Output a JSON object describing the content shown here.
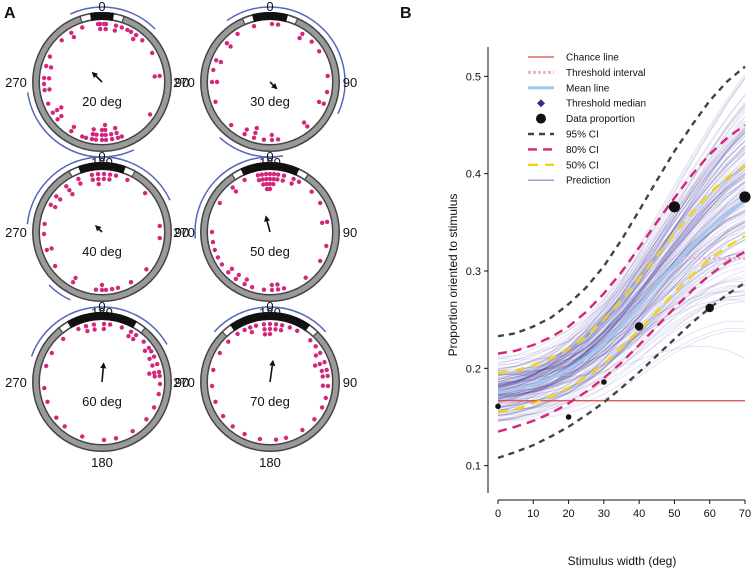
{
  "panels": {
    "a_label": "A",
    "b_label": "B"
  },
  "circular_panels": {
    "direction_labels": {
      "top": "0",
      "right": "90",
      "bottom": "180",
      "left": "270"
    },
    "dials": [
      {
        "label": "20 deg",
        "stimulus_width_deg": 20,
        "arrow_deg": 315,
        "arrow_len": 0.22,
        "arc_ranges": [
          [
            -25,
            45
          ],
          [
            155,
            262
          ]
        ],
        "dots": [
          [
            356,
            1
          ],
          [
            358,
            2
          ],
          [
            2,
            1
          ],
          [
            4,
            2
          ],
          [
            14,
            2
          ],
          [
            20,
            1
          ],
          [
            26,
            1
          ],
          [
            30,
            1
          ],
          [
            36,
            2
          ],
          [
            44,
            1
          ],
          [
            60,
            1
          ],
          [
            84,
            2
          ],
          [
            124,
            1
          ],
          [
            160,
            1
          ],
          [
            164,
            3
          ],
          [
            170,
            2
          ],
          [
            176,
            4
          ],
          [
            180,
            3
          ],
          [
            186,
            2
          ],
          [
            190,
            3
          ],
          [
            196,
            1
          ],
          [
            200,
            1
          ],
          [
            212,
            2
          ],
          [
            230,
            2
          ],
          [
            238,
            3
          ],
          [
            248,
            1
          ],
          [
            262,
            2
          ],
          [
            268,
            1
          ],
          [
            274,
            2
          ],
          [
            286,
            2
          ],
          [
            296,
            1
          ],
          [
            316,
            1
          ],
          [
            328,
            2
          ],
          [
            340,
            1
          ]
        ]
      },
      {
        "label": "30 deg",
        "stimulus_width_deg": 30,
        "arrow_deg": 135,
        "arrow_len": 0.16,
        "arc_ranges": [
          [
            -35,
            115
          ],
          [
            170,
            222
          ]
        ],
        "dots": [
          [
            2,
            1
          ],
          [
            8,
            1
          ],
          [
            34,
            2
          ],
          [
            46,
            1
          ],
          [
            58,
            1
          ],
          [
            84,
            1
          ],
          [
            100,
            1
          ],
          [
            112,
            2
          ],
          [
            140,
            2
          ],
          [
            172,
            1
          ],
          [
            178,
            2
          ],
          [
            186,
            1
          ],
          [
            196,
            3
          ],
          [
            206,
            2
          ],
          [
            222,
            1
          ],
          [
            250,
            1
          ],
          [
            270,
            2
          ],
          [
            282,
            1
          ],
          [
            292,
            2
          ],
          [
            312,
            2
          ],
          [
            326,
            1
          ],
          [
            344,
            1
          ]
        ]
      },
      {
        "label": "40 deg",
        "stimulus_width_deg": 40,
        "arrow_deg": 315,
        "arrow_len": 0.15,
        "arc_ranges": [
          [
            -84,
            65
          ],
          [
            205,
            225
          ]
        ],
        "dots": [
          [
            350,
            2
          ],
          [
            356,
            3
          ],
          [
            2,
            2
          ],
          [
            8,
            2
          ],
          [
            14,
            1
          ],
          [
            26,
            1
          ],
          [
            48,
            1
          ],
          [
            84,
            1
          ],
          [
            96,
            1
          ],
          [
            130,
            1
          ],
          [
            150,
            1
          ],
          [
            164,
            1
          ],
          [
            170,
            1
          ],
          [
            176,
            1
          ],
          [
            180,
            2
          ],
          [
            186,
            1
          ],
          [
            210,
            2
          ],
          [
            234,
            1
          ],
          [
            252,
            2
          ],
          [
            268,
            1
          ],
          [
            278,
            1
          ],
          [
            298,
            2
          ],
          [
            308,
            2
          ],
          [
            322,
            3
          ],
          [
            336,
            2
          ]
        ]
      },
      {
        "label": "50 deg",
        "stimulus_width_deg": 50,
        "arrow_deg": 345,
        "arrow_len": 0.26,
        "arc_ranges": [
          [
            -95,
            5
          ]
        ],
        "dots": [
          [
            348,
            2
          ],
          [
            352,
            3
          ],
          [
            356,
            4
          ],
          [
            0,
            4
          ],
          [
            4,
            3
          ],
          [
            8,
            2
          ],
          [
            14,
            2
          ],
          [
            24,
            2
          ],
          [
            30,
            1
          ],
          [
            46,
            1
          ],
          [
            60,
            1
          ],
          [
            80,
            2
          ],
          [
            104,
            1
          ],
          [
            120,
            1
          ],
          [
            142,
            1
          ],
          [
            166,
            1
          ],
          [
            172,
            2
          ],
          [
            178,
            2
          ],
          [
            186,
            1
          ],
          [
            198,
            1
          ],
          [
            206,
            2
          ],
          [
            216,
            2
          ],
          [
            226,
            2
          ],
          [
            236,
            1
          ],
          [
            244,
            1
          ],
          [
            252,
            1
          ],
          [
            260,
            1
          ],
          [
            270,
            1
          ],
          [
            300,
            1
          ],
          [
            320,
            2
          ],
          [
            334,
            1
          ]
        ]
      },
      {
        "label": "60 deg",
        "stimulus_width_deg": 60,
        "arrow_deg": 5,
        "arrow_len": 0.3,
        "arc_ranges": [
          [
            -70,
            60
          ]
        ],
        "dots": [
          [
            336,
            1
          ],
          [
            344,
            2
          ],
          [
            352,
            2
          ],
          [
            2,
            2
          ],
          [
            8,
            1
          ],
          [
            20,
            1
          ],
          [
            30,
            2
          ],
          [
            36,
            2
          ],
          [
            46,
            1
          ],
          [
            54,
            2
          ],
          [
            58,
            1
          ],
          [
            64,
            2
          ],
          [
            72,
            2
          ],
          [
            80,
            3
          ],
          [
            84,
            2
          ],
          [
            92,
            1
          ],
          [
            102,
            1
          ],
          [
            116,
            1
          ],
          [
            130,
            1
          ],
          [
            148,
            1
          ],
          [
            166,
            1
          ],
          [
            178,
            1
          ],
          [
            200,
            1
          ],
          [
            220,
            1
          ],
          [
            232,
            1
          ],
          [
            250,
            1
          ],
          [
            264,
            1
          ],
          [
            286,
            1
          ],
          [
            300,
            1
          ],
          [
            318,
            1
          ]
        ]
      },
      {
        "label": "70 deg",
        "stimulus_width_deg": 70,
        "arrow_deg": 8,
        "arrow_len": 0.34,
        "arc_ranges": [
          [
            -48,
            48
          ]
        ],
        "dots": [
          [
            334,
            1
          ],
          [
            340,
            2
          ],
          [
            346,
            1
          ],
          [
            354,
            3
          ],
          [
            0,
            3
          ],
          [
            6,
            2
          ],
          [
            12,
            2
          ],
          [
            20,
            1
          ],
          [
            28,
            1
          ],
          [
            44,
            1
          ],
          [
            52,
            1
          ],
          [
            60,
            2
          ],
          [
            70,
            3
          ],
          [
            78,
            2
          ],
          [
            84,
            2
          ],
          [
            94,
            2
          ],
          [
            106,
            1
          ],
          [
            116,
            1
          ],
          [
            130,
            1
          ],
          [
            146,
            1
          ],
          [
            164,
            1
          ],
          [
            174,
            1
          ],
          [
            190,
            1
          ],
          [
            206,
            1
          ],
          [
            220,
            1
          ],
          [
            234,
            1
          ],
          [
            250,
            1
          ],
          [
            266,
            1
          ],
          [
            282,
            1
          ],
          [
            300,
            1
          ],
          [
            314,
            1
          ],
          [
            326,
            1
          ]
        ]
      }
    ]
  },
  "chart_data": {
    "type": "line",
    "title": "",
    "xlabel": "Stimulus width (deg)",
    "ylabel": "Proportion oriented to stimulus",
    "xlim": [
      0,
      70
    ],
    "ylim": [
      0.075,
      0.525
    ],
    "x_ticks": [
      0,
      10,
      20,
      30,
      40,
      50,
      60,
      70
    ],
    "y_ticks": [
      0.1,
      0.2,
      0.3,
      0.4,
      0.5
    ],
    "y_tick_labels": [
      "0.1",
      "0.2",
      "0.3",
      "0.4",
      "0.5"
    ],
    "legend_position": "top-left",
    "grid": false,
    "legend": [
      {
        "label": "Chance line",
        "style": "chance"
      },
      {
        "label": "Threshold interval",
        "style": "threshold_interval"
      },
      {
        "label": "Mean line",
        "style": "mean"
      },
      {
        "label": "Threshold median",
        "style": "threshold_median"
      },
      {
        "label": "Data proportion",
        "style": "data"
      },
      {
        "label": "95% CI",
        "style": "ci95"
      },
      {
        "label": "80% CI",
        "style": "ci80"
      },
      {
        "label": "50% CI",
        "style": "ci50"
      },
      {
        "label": "Prediction",
        "style": "prediction"
      }
    ],
    "x": [
      0,
      5,
      10,
      15,
      20,
      25,
      30,
      35,
      40,
      45,
      50,
      55,
      60,
      65,
      70
    ],
    "chance_line": 0.1667,
    "threshold_interval": {
      "y": 0.313,
      "x_range": [
        51,
        70
      ]
    },
    "series": [
      {
        "key": "mean",
        "values": [
          0.175,
          0.178,
          0.183,
          0.19,
          0.199,
          0.211,
          0.226,
          0.244,
          0.264,
          0.285,
          0.306,
          0.326,
          0.344,
          0.36,
          0.372
        ]
      },
      {
        "key": "ci95_upper",
        "values": [
          0.233,
          0.236,
          0.243,
          0.252,
          0.266,
          0.283,
          0.305,
          0.332,
          0.362,
          0.393,
          0.423,
          0.45,
          0.475,
          0.495,
          0.51
        ]
      },
      {
        "key": "ci95_lower",
        "values": [
          0.108,
          0.114,
          0.121,
          0.13,
          0.14,
          0.152,
          0.165,
          0.18,
          0.196,
          0.213,
          0.23,
          0.247,
          0.262,
          0.276,
          0.288
        ]
      },
      {
        "key": "ci80_upper",
        "values": [
          0.215,
          0.218,
          0.224,
          0.232,
          0.243,
          0.258,
          0.277,
          0.299,
          0.324,
          0.35,
          0.375,
          0.399,
          0.42,
          0.437,
          0.45
        ]
      },
      {
        "key": "ci80_lower",
        "values": [
          0.135,
          0.14,
          0.146,
          0.154,
          0.164,
          0.176,
          0.19,
          0.206,
          0.224,
          0.243,
          0.262,
          0.28,
          0.296,
          0.309,
          0.32
        ]
      },
      {
        "key": "ci50_upper",
        "values": [
          0.195,
          0.198,
          0.203,
          0.21,
          0.22,
          0.233,
          0.25,
          0.27,
          0.292,
          0.315,
          0.338,
          0.36,
          0.38,
          0.396,
          0.408
        ]
      },
      {
        "key": "ci50_lower",
        "values": [
          0.155,
          0.158,
          0.164,
          0.171,
          0.18,
          0.191,
          0.205,
          0.221,
          0.239,
          0.258,
          0.278,
          0.296,
          0.312,
          0.325,
          0.336
        ]
      }
    ],
    "data_points": [
      {
        "x": 0,
        "y": 0.161,
        "size": "small"
      },
      {
        "x": 20,
        "y": 0.15,
        "size": "small"
      },
      {
        "x": 30,
        "y": 0.186,
        "size": "small"
      },
      {
        "x": 40,
        "y": 0.243,
        "size": "medium"
      },
      {
        "x": 50,
        "y": 0.366,
        "size": "large"
      },
      {
        "x": 60,
        "y": 0.262,
        "size": "medium"
      },
      {
        "x": 70,
        "y": 0.376,
        "size": "large"
      }
    ],
    "colors": {
      "chance": "#d94848",
      "threshold_interval": "#e4b6d8",
      "mean": "#a3c8f0",
      "threshold_median": "#3b2a8c",
      "data": "#111111",
      "ci95": "#444444",
      "ci80": "#d4267a",
      "ci50": "#f2d21c",
      "prediction": "#2b2690",
      "dial_dot": "#d4267a",
      "dial_arc": "#5566bb"
    }
  }
}
